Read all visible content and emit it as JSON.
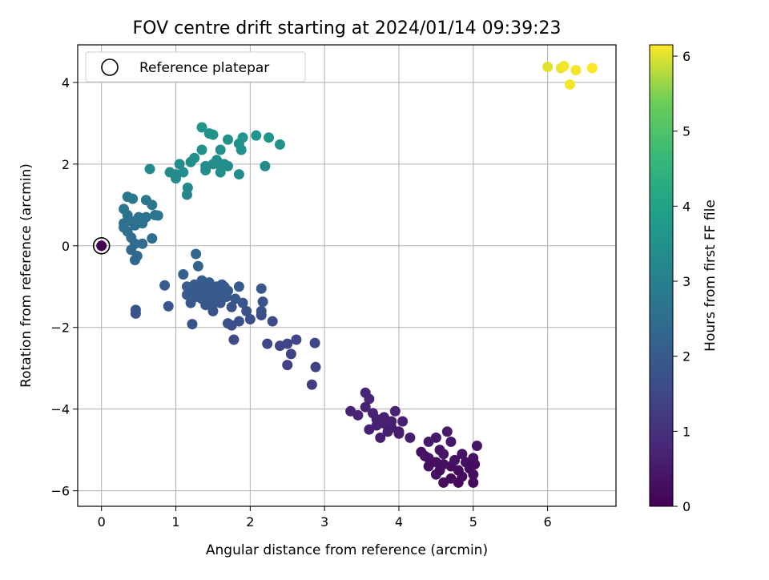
{
  "chart_data": {
    "type": "scatter",
    "title": "FOV centre drift starting at 2024/01/14 09:39:23",
    "xlabel": "Angular distance from reference (arcmin)",
    "ylabel": "Rotation from reference (arcmin)",
    "xlim": [
      -0.32,
      6.92
    ],
    "ylim": [
      -6.38,
      4.92
    ],
    "xticks": [
      0,
      1,
      2,
      3,
      4,
      5,
      6
    ],
    "yticks": [
      -6,
      -4,
      -2,
      0,
      2,
      4
    ],
    "grid": true,
    "legend": {
      "position": "top-left",
      "entries": [
        "Reference platepar"
      ]
    },
    "colorbar": {
      "label": "Hours from first FF file",
      "range": [
        0,
        6.15
      ],
      "ticks": [
        0,
        1,
        2,
        3,
        4,
        5,
        6
      ],
      "colormap": "viridis"
    },
    "reference_point": {
      "x": 0,
      "y": 0,
      "label": "Reference platepar"
    },
    "points": [
      {
        "x": 0.0,
        "y": 0.0,
        "h": 0.0
      },
      {
        "x": 4.3,
        "y": -5.05,
        "h": 0.3
      },
      {
        "x": 4.4,
        "y": -5.2,
        "h": 0.35
      },
      {
        "x": 4.5,
        "y": -5.3,
        "h": 0.3
      },
      {
        "x": 4.6,
        "y": -5.1,
        "h": 0.4
      },
      {
        "x": 4.7,
        "y": -5.4,
        "h": 0.25
      },
      {
        "x": 4.8,
        "y": -5.5,
        "h": 0.2
      },
      {
        "x": 4.9,
        "y": -5.3,
        "h": 0.3
      },
      {
        "x": 5.0,
        "y": -5.2,
        "h": 0.35
      },
      {
        "x": 4.5,
        "y": -5.6,
        "h": 0.3
      },
      {
        "x": 4.6,
        "y": -5.8,
        "h": 0.2
      },
      {
        "x": 4.8,
        "y": -5.8,
        "h": 0.15
      },
      {
        "x": 5.0,
        "y": -5.8,
        "h": 0.15
      },
      {
        "x": 5.05,
        "y": -4.9,
        "h": 0.4
      },
      {
        "x": 4.7,
        "y": -4.8,
        "h": 0.45
      },
      {
        "x": 4.5,
        "y": -4.7,
        "h": 0.5
      },
      {
        "x": 4.65,
        "y": -4.55,
        "h": 0.55
      },
      {
        "x": 4.4,
        "y": -4.8,
        "h": 0.5
      },
      {
        "x": 4.55,
        "y": -5.0,
        "h": 0.4
      },
      {
        "x": 4.85,
        "y": -5.1,
        "h": 0.35
      },
      {
        "x": 5.0,
        "y": -5.6,
        "h": 0.25
      },
      {
        "x": 4.7,
        "y": -5.7,
        "h": 0.2
      },
      {
        "x": 4.4,
        "y": -5.4,
        "h": 0.3
      },
      {
        "x": 4.75,
        "y": -5.25,
        "h": 0.3
      },
      {
        "x": 4.95,
        "y": -5.45,
        "h": 0.25
      },
      {
        "x": 4.6,
        "y": -5.35,
        "h": 0.3
      },
      {
        "x": 4.35,
        "y": -5.15,
        "h": 0.35
      },
      {
        "x": 4.85,
        "y": -5.65,
        "h": 0.2
      },
      {
        "x": 5.02,
        "y": -5.35,
        "h": 0.25
      },
      {
        "x": 4.55,
        "y": -5.5,
        "h": 0.3
      },
      {
        "x": 3.35,
        "y": -4.05,
        "h": 0.7
      },
      {
        "x": 3.45,
        "y": -4.15,
        "h": 0.7
      },
      {
        "x": 3.55,
        "y": -3.6,
        "h": 0.75
      },
      {
        "x": 3.6,
        "y": -3.75,
        "h": 0.75
      },
      {
        "x": 3.55,
        "y": -3.95,
        "h": 0.7
      },
      {
        "x": 3.65,
        "y": -4.1,
        "h": 0.7
      },
      {
        "x": 3.7,
        "y": -4.25,
        "h": 0.65
      },
      {
        "x": 3.8,
        "y": -4.35,
        "h": 0.65
      },
      {
        "x": 3.9,
        "y": -4.45,
        "h": 0.6
      },
      {
        "x": 4.0,
        "y": -4.55,
        "h": 0.6
      },
      {
        "x": 3.75,
        "y": -4.7,
        "h": 0.6
      },
      {
        "x": 3.95,
        "y": -4.05,
        "h": 0.7
      },
      {
        "x": 4.05,
        "y": -4.3,
        "h": 0.65
      },
      {
        "x": 4.15,
        "y": -4.7,
        "h": 0.6
      },
      {
        "x": 3.85,
        "y": -4.55,
        "h": 0.6
      },
      {
        "x": 3.6,
        "y": -4.5,
        "h": 0.65
      },
      {
        "x": 3.7,
        "y": -4.4,
        "h": 0.65
      },
      {
        "x": 4.0,
        "y": -4.6,
        "h": 0.6
      },
      {
        "x": 3.8,
        "y": -4.2,
        "h": 0.65
      },
      {
        "x": 3.9,
        "y": -4.3,
        "h": 0.65
      },
      {
        "x": 1.15,
        "y": -1.0,
        "h": 2.0
      },
      {
        "x": 1.2,
        "y": -1.1,
        "h": 2.0
      },
      {
        "x": 1.3,
        "y": -1.2,
        "h": 1.95
      },
      {
        "x": 1.4,
        "y": -1.0,
        "h": 2.05
      },
      {
        "x": 1.5,
        "y": -1.3,
        "h": 1.9
      },
      {
        "x": 1.35,
        "y": -0.85,
        "h": 2.1
      },
      {
        "x": 1.45,
        "y": -1.15,
        "h": 2.0
      },
      {
        "x": 1.55,
        "y": -1.0,
        "h": 2.0
      },
      {
        "x": 1.6,
        "y": -1.2,
        "h": 1.95
      },
      {
        "x": 1.7,
        "y": -1.1,
        "h": 1.95
      },
      {
        "x": 1.8,
        "y": -1.3,
        "h": 1.9
      },
      {
        "x": 1.25,
        "y": -0.95,
        "h": 2.05
      },
      {
        "x": 1.3,
        "y": -0.5,
        "h": 2.2
      },
      {
        "x": 1.27,
        "y": -0.2,
        "h": 2.3
      },
      {
        "x": 1.1,
        "y": -0.7,
        "h": 2.15
      },
      {
        "x": 1.15,
        "y": -1.2,
        "h": 2.0
      },
      {
        "x": 1.2,
        "y": -1.4,
        "h": 1.9
      },
      {
        "x": 1.4,
        "y": -1.45,
        "h": 1.85
      },
      {
        "x": 1.5,
        "y": -1.6,
        "h": 1.8
      },
      {
        "x": 1.6,
        "y": -1.4,
        "h": 1.85
      },
      {
        "x": 1.75,
        "y": -1.5,
        "h": 1.8
      },
      {
        "x": 1.85,
        "y": -1.0,
        "h": 2.0
      },
      {
        "x": 1.9,
        "y": -1.4,
        "h": 1.85
      },
      {
        "x": 1.95,
        "y": -1.6,
        "h": 1.75
      },
      {
        "x": 2.0,
        "y": -1.8,
        "h": 1.7
      },
      {
        "x": 1.85,
        "y": -1.85,
        "h": 1.7
      },
      {
        "x": 1.75,
        "y": -1.95,
        "h": 1.65
      },
      {
        "x": 1.7,
        "y": -1.9,
        "h": 1.7
      },
      {
        "x": 1.78,
        "y": -2.3,
        "h": 1.6
      },
      {
        "x": 1.22,
        "y": -1.92,
        "h": 1.75
      },
      {
        "x": 0.85,
        "y": -0.97,
        "h": 2.05
      },
      {
        "x": 0.9,
        "y": -1.48,
        "h": 1.85
      },
      {
        "x": 0.46,
        "y": -1.57,
        "h": 1.85
      },
      {
        "x": 0.46,
        "y": -1.66,
        "h": 1.85
      },
      {
        "x": 1.35,
        "y": -1.3,
        "h": 1.95
      },
      {
        "x": 1.45,
        "y": -0.9,
        "h": 2.05
      },
      {
        "x": 1.55,
        "y": -1.25,
        "h": 1.95
      },
      {
        "x": 1.65,
        "y": -1.0,
        "h": 2.0
      },
      {
        "x": 1.38,
        "y": -1.1,
        "h": 2.0
      },
      {
        "x": 1.28,
        "y": -1.25,
        "h": 1.95
      },
      {
        "x": 1.48,
        "y": -1.05,
        "h": 2.0
      },
      {
        "x": 1.58,
        "y": -1.15,
        "h": 1.95
      },
      {
        "x": 1.42,
        "y": -1.35,
        "h": 1.9
      },
      {
        "x": 1.32,
        "y": -1.0,
        "h": 2.0
      },
      {
        "x": 1.68,
        "y": -1.25,
        "h": 1.95
      },
      {
        "x": 1.22,
        "y": -1.15,
        "h": 2.0
      },
      {
        "x": 1.62,
        "y": -0.95,
        "h": 2.0
      },
      {
        "x": 1.52,
        "y": -1.4,
        "h": 1.9
      },
      {
        "x": 2.15,
        "y": -1.05,
        "h": 1.9
      },
      {
        "x": 2.17,
        "y": -1.37,
        "h": 1.8
      },
      {
        "x": 2.15,
        "y": -1.6,
        "h": 1.75
      },
      {
        "x": 2.15,
        "y": -1.7,
        "h": 1.7
      },
      {
        "x": 2.3,
        "y": -1.85,
        "h": 1.6
      },
      {
        "x": 2.23,
        "y": -2.4,
        "h": 1.5
      },
      {
        "x": 2.4,
        "y": -2.45,
        "h": 1.45
      },
      {
        "x": 2.5,
        "y": -2.4,
        "h": 1.45
      },
      {
        "x": 2.55,
        "y": -2.65,
        "h": 1.4
      },
      {
        "x": 2.5,
        "y": -2.92,
        "h": 1.35
      },
      {
        "x": 2.62,
        "y": -2.3,
        "h": 1.5
      },
      {
        "x": 2.87,
        "y": -2.38,
        "h": 1.45
      },
      {
        "x": 2.88,
        "y": -2.97,
        "h": 1.35
      },
      {
        "x": 2.83,
        "y": -3.4,
        "h": 1.25
      },
      {
        "x": 0.3,
        "y": 0.55,
        "h": 2.6
      },
      {
        "x": 0.35,
        "y": 0.75,
        "h": 2.65
      },
      {
        "x": 0.4,
        "y": 0.6,
        "h": 2.6
      },
      {
        "x": 0.45,
        "y": 0.5,
        "h": 2.6
      },
      {
        "x": 0.5,
        "y": 0.7,
        "h": 2.65
      },
      {
        "x": 0.55,
        "y": 0.55,
        "h": 2.6
      },
      {
        "x": 0.6,
        "y": 0.7,
        "h": 2.65
      },
      {
        "x": 0.35,
        "y": 0.35,
        "h": 2.55
      },
      {
        "x": 0.4,
        "y": 0.2,
        "h": 2.5
      },
      {
        "x": 0.45,
        "y": 0.05,
        "h": 2.45
      },
      {
        "x": 0.55,
        "y": 0.05,
        "h": 2.45
      },
      {
        "x": 0.4,
        "y": -0.1,
        "h": 2.4
      },
      {
        "x": 0.48,
        "y": -0.25,
        "h": 2.35
      },
      {
        "x": 0.45,
        "y": -0.35,
        "h": 2.35
      },
      {
        "x": 0.68,
        "y": 0.18,
        "h": 2.5
      },
      {
        "x": 0.35,
        "y": 1.2,
        "h": 2.8
      },
      {
        "x": 0.42,
        "y": 1.15,
        "h": 2.8
      },
      {
        "x": 0.3,
        "y": 0.9,
        "h": 2.7
      },
      {
        "x": 0.6,
        "y": 1.12,
        "h": 2.8
      },
      {
        "x": 0.68,
        "y": 1.0,
        "h": 2.75
      },
      {
        "x": 0.72,
        "y": 0.75,
        "h": 2.7
      },
      {
        "x": 0.76,
        "y": 0.74,
        "h": 2.7
      },
      {
        "x": 0.5,
        "y": 0.58,
        "h": 2.6
      },
      {
        "x": 0.3,
        "y": 0.45,
        "h": 2.55
      },
      {
        "x": 0.65,
        "y": 1.88,
        "h": 3.3
      },
      {
        "x": 0.92,
        "y": 1.8,
        "h": 3.35
      },
      {
        "x": 1.0,
        "y": 1.75,
        "h": 3.35
      },
      {
        "x": 1.0,
        "y": 1.65,
        "h": 3.3
      },
      {
        "x": 1.05,
        "y": 2.0,
        "h": 3.4
      },
      {
        "x": 1.1,
        "y": 1.8,
        "h": 3.35
      },
      {
        "x": 1.15,
        "y": 1.25,
        "h": 3.2
      },
      {
        "x": 1.16,
        "y": 1.42,
        "h": 3.25
      },
      {
        "x": 1.2,
        "y": 2.05,
        "h": 3.4
      },
      {
        "x": 1.25,
        "y": 2.15,
        "h": 3.45
      },
      {
        "x": 1.35,
        "y": 2.35,
        "h": 3.5
      },
      {
        "x": 1.4,
        "y": 1.85,
        "h": 3.4
      },
      {
        "x": 1.4,
        "y": 1.95,
        "h": 3.4
      },
      {
        "x": 1.35,
        "y": 2.9,
        "h": 3.6
      },
      {
        "x": 1.45,
        "y": 2.75,
        "h": 3.55
      },
      {
        "x": 1.5,
        "y": 2.72,
        "h": 3.55
      },
      {
        "x": 1.5,
        "y": 2.0,
        "h": 3.4
      },
      {
        "x": 1.55,
        "y": 2.1,
        "h": 3.45
      },
      {
        "x": 1.6,
        "y": 2.35,
        "h": 3.5
      },
      {
        "x": 1.6,
        "y": 1.8,
        "h": 3.4
      },
      {
        "x": 1.65,
        "y": 2.0,
        "h": 3.4
      },
      {
        "x": 1.7,
        "y": 1.95,
        "h": 3.4
      },
      {
        "x": 1.7,
        "y": 2.6,
        "h": 3.55
      },
      {
        "x": 1.85,
        "y": 2.5,
        "h": 3.55
      },
      {
        "x": 1.88,
        "y": 2.35,
        "h": 3.5
      },
      {
        "x": 1.9,
        "y": 2.65,
        "h": 3.6
      },
      {
        "x": 1.85,
        "y": 1.75,
        "h": 3.4
      },
      {
        "x": 2.08,
        "y": 2.7,
        "h": 3.6
      },
      {
        "x": 2.2,
        "y": 1.95,
        "h": 3.4
      },
      {
        "x": 2.25,
        "y": 2.65,
        "h": 3.6
      },
      {
        "x": 2.4,
        "y": 2.48,
        "h": 3.55
      },
      {
        "x": 1.58,
        "y": 2.0,
        "h": 3.4
      },
      {
        "x": 6.0,
        "y": 4.38,
        "h": 6.0
      },
      {
        "x": 6.18,
        "y": 4.35,
        "h": 6.05
      },
      {
        "x": 6.22,
        "y": 4.4,
        "h": 6.1
      },
      {
        "x": 6.3,
        "y": 3.95,
        "h": 6.1
      },
      {
        "x": 6.38,
        "y": 4.3,
        "h": 6.1
      },
      {
        "x": 6.6,
        "y": 4.35,
        "h": 6.15
      }
    ]
  }
}
